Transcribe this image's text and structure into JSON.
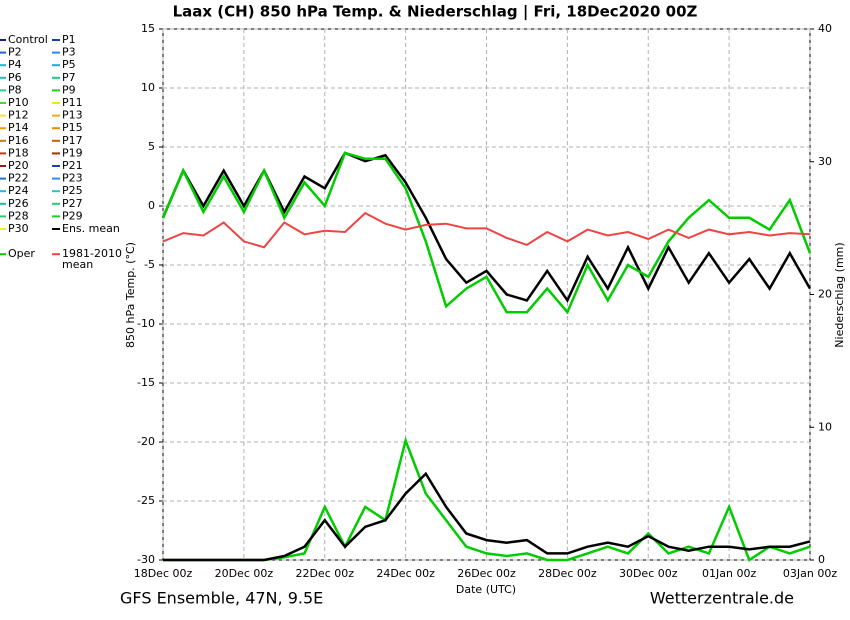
{
  "chart_data": {
    "type": "line",
    "title": "Laax  (CH)  850 hPa Temp. & Niederschlag | Fri, 18Dec2020 00Z",
    "xlabel": "Date (UTC)",
    "ylabel": "850 hPa Temp. (°C)",
    "y2label": "Niederschlag (mm)",
    "footer_left": "GFS Ensemble, 47N, 9.5E",
    "footer_right": "Wetterzentrale.de",
    "x": [
      "18Dec 00z",
      "18Dec 12z",
      "19Dec 00z",
      "19Dec 12z",
      "20Dec 00z",
      "20Dec 12z",
      "21Dec 00z",
      "21Dec 12z",
      "22Dec 00z",
      "22Dec 12z",
      "23Dec 00z",
      "23Dec 12z",
      "24Dec 00z",
      "24Dec 12z",
      "25Dec 00z",
      "25Dec 12z",
      "26Dec 00z",
      "26Dec 12z",
      "27Dec 00z",
      "27Dec 12z",
      "28Dec 00z",
      "28Dec 12z",
      "29Dec 00z",
      "29Dec 12z",
      "30Dec 00z",
      "30Dec 12z",
      "31Dec 00z",
      "31Dec 12z",
      "01Jan 00z",
      "01Jan 12z",
      "02Jan 00z",
      "02Jan 12z",
      "03Jan 00z"
    ],
    "ylim": [
      -30,
      15
    ],
    "yticks": [
      -30,
      -25,
      -20,
      -15,
      -10,
      -5,
      0,
      5,
      10,
      15
    ],
    "y2lim": [
      0,
      40
    ],
    "y2ticks": [
      0,
      10,
      20,
      30,
      40
    ],
    "grid": true,
    "members": [
      {
        "name": "Control",
        "color": "#1a1a8c"
      },
      {
        "name": "P1",
        "color": "#1c3fa8"
      },
      {
        "name": "P2",
        "color": "#1f5fd0"
      },
      {
        "name": "P3",
        "color": "#2a8ae8"
      },
      {
        "name": "P4",
        "color": "#22b0d8"
      },
      {
        "name": "P5",
        "color": "#27a5e0"
      },
      {
        "name": "P6",
        "color": "#20c0b0"
      },
      {
        "name": "P7",
        "color": "#18c890"
      },
      {
        "name": "P8",
        "color": "#30cc80"
      },
      {
        "name": "P9",
        "color": "#22cc22"
      },
      {
        "name": "P10",
        "color": "#44dd22"
      },
      {
        "name": "P11",
        "color": "#e8e820"
      },
      {
        "name": "P12",
        "color": "#f0e040"
      },
      {
        "name": "P13",
        "color": "#e8b020"
      },
      {
        "name": "P14",
        "color": "#f0a000"
      },
      {
        "name": "P15",
        "color": "#e88a10"
      },
      {
        "name": "P16",
        "color": "#c87820"
      },
      {
        "name": "P17",
        "color": "#d05a10"
      },
      {
        "name": "P18",
        "color": "#b84010"
      },
      {
        "name": "P19",
        "color": "#b02808"
      },
      {
        "name": "P20",
        "color": "#902010"
      },
      {
        "name": "P21",
        "color": "#1c3fa8"
      },
      {
        "name": "P22",
        "color": "#1f6fe0"
      },
      {
        "name": "P23",
        "color": "#2a90f0"
      },
      {
        "name": "P24",
        "color": "#22b8e0"
      },
      {
        "name": "P25",
        "color": "#20c8c0"
      },
      {
        "name": "P26",
        "color": "#18c098"
      },
      {
        "name": "P27",
        "color": "#28c878"
      },
      {
        "name": "P28",
        "color": "#30cc60"
      },
      {
        "name": "P29",
        "color": "#22cc22"
      },
      {
        "name": "P30",
        "color": "#f0f020"
      }
    ],
    "series": [
      {
        "name": "Ens. mean",
        "color": "#000000",
        "values": [
          -1,
          3,
          0,
          3,
          0,
          3,
          -0.5,
          2.5,
          1.5,
          4.5,
          3.8,
          4.3,
          2,
          -1,
          -4.5,
          -6.5,
          -5.5,
          -7.5,
          -8,
          -5.5,
          -8,
          -4.3,
          -7,
          -3.5,
          -7,
          -3.5,
          -6.5,
          -4,
          -6.5,
          -4.5,
          -7,
          -4,
          -7
        ]
      },
      {
        "name": "Oper",
        "color": "#00cc00",
        "values": [
          -1,
          3,
          -0.5,
          2.5,
          -0.5,
          3,
          -1,
          2,
          0,
          4.5,
          4,
          4,
          1.5,
          -3,
          -8.5,
          -7,
          -6,
          -9,
          -9,
          -7,
          -9,
          -5,
          -8,
          -5,
          -6,
          -3,
          -1,
          0.5,
          -1,
          -1,
          -2,
          0.5,
          -4
        ]
      },
      {
        "name": "1981-2010 mean",
        "color": "#ee4444",
        "values": [
          -3,
          -2.3,
          -2.5,
          -1.4,
          -3,
          -3.5,
          -1.4,
          -2.4,
          -2.1,
          -2.2,
          -0.6,
          -1.5,
          -2,
          -1.6,
          -1.5,
          -1.9,
          -1.9,
          -2.7,
          -3.3,
          -2.2,
          -3,
          -2,
          -2.5,
          -2.2,
          -2.8,
          -2,
          -2.7,
          -2,
          -2.4,
          -2.2,
          -2.5,
          -2.3,
          -2.4
        ]
      },
      {
        "axis": "y2",
        "color": "#00cc00",
        "values": [
          0,
          0,
          0,
          0,
          0,
          0,
          0.2,
          0.5,
          4,
          1,
          4,
          3,
          9,
          5,
          3,
          1,
          0.5,
          0.3,
          0.5,
          0,
          0,
          0.5,
          1,
          0.5,
          2,
          0.5,
          1,
          0.5,
          4,
          0,
          1,
          0.5,
          1
        ]
      },
      {
        "axis": "y2",
        "color": "#000000",
        "values": [
          0,
          0,
          0,
          0,
          0,
          0,
          0.3,
          1,
          3,
          1,
          2.5,
          3,
          5,
          6.5,
          4,
          2,
          1.5,
          1.3,
          1.5,
          0.5,
          0.5,
          1,
          1.3,
          1,
          1.8,
          1,
          0.7,
          1,
          1,
          0.8,
          1,
          1,
          1.4
        ]
      }
    ]
  }
}
